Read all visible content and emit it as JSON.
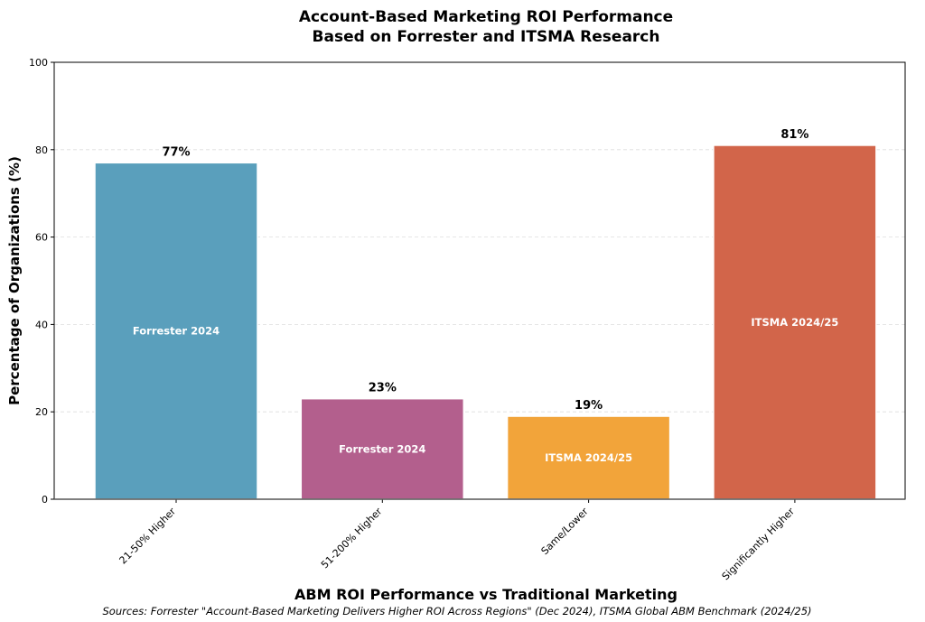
{
  "chart_data": {
    "type": "bar",
    "title": "Account-Based Marketing ROI Performance\nBased on Forrester and ITSMA Research",
    "xlabel": "ABM ROI Performance vs Traditional Marketing",
    "ylabel": "Percentage of Organizations (%)",
    "ylim": [
      0,
      100
    ],
    "yticks": [
      0,
      20,
      40,
      60,
      80,
      100
    ],
    "grid": "y-dashed",
    "categories": [
      "21-50% Higher",
      "51-200% Higher",
      "Same/Lower",
      "Significantly Higher"
    ],
    "values": [
      77,
      23,
      19,
      81
    ],
    "value_labels": [
      "77%",
      "23%",
      "19%",
      "81%"
    ],
    "bar_labels": [
      "Forrester 2024",
      "Forrester 2024",
      "ITSMA 2024/25",
      "ITSMA 2024/25"
    ],
    "colors": [
      "#5a9fbc",
      "#b35f8d",
      "#f2a43a",
      "#d2654a"
    ],
    "footnote": "Sources: Forrester \"Account-Based Marketing Delivers Higher ROI Across Regions\" (Dec 2024), ITSMA Global ABM Benchmark (2024/25)"
  }
}
